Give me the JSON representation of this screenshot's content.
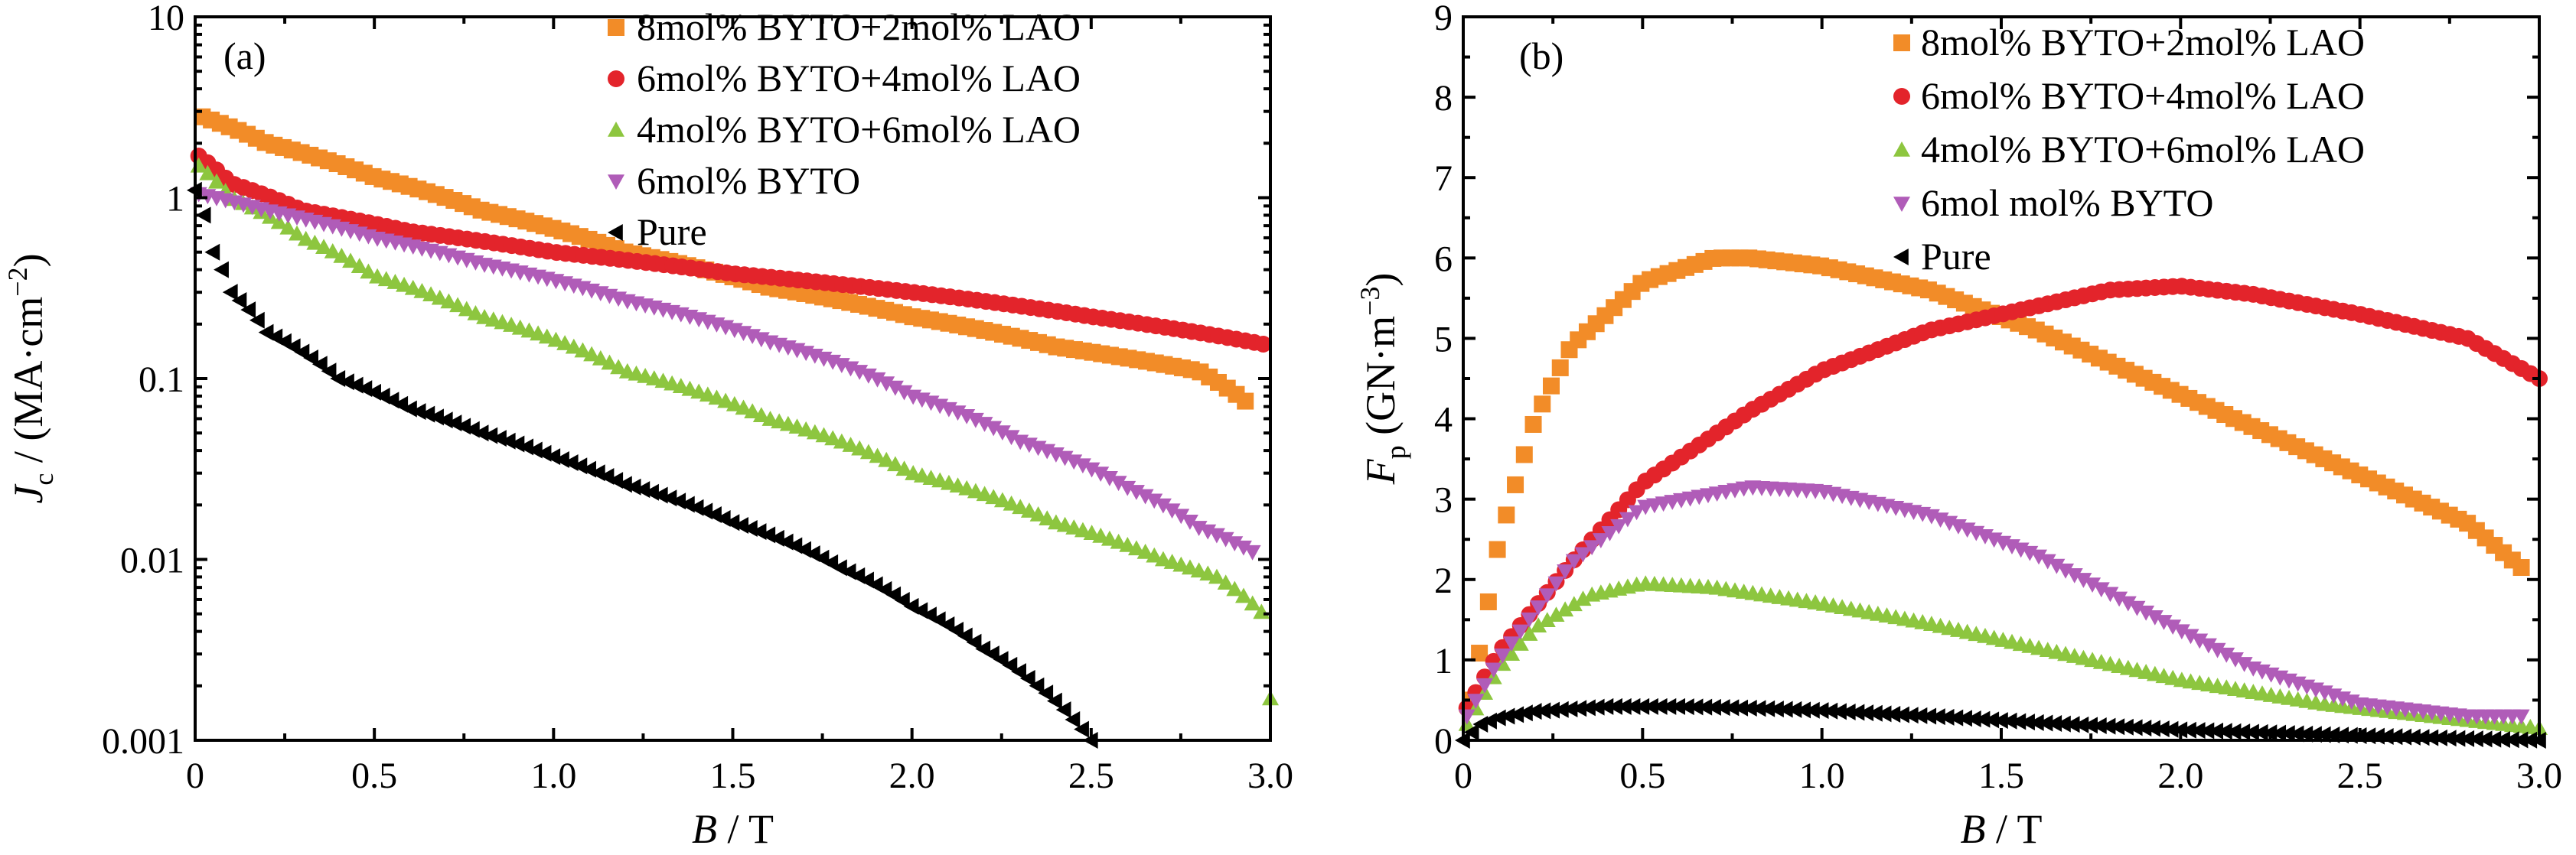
{
  "chart_data": [
    {
      "type": "scatter",
      "panel_label": "(a)",
      "ylabel": {
        "symbol": "J",
        "sub": "c",
        "rest": " / (MA·cm",
        "sup": "−2",
        "close": ")"
      },
      "xlabel": {
        "symbol": "B",
        "rest": " / T"
      },
      "xlim": [
        0,
        3
      ],
      "ylim": [
        0.001,
        10
      ],
      "y_scale": "log",
      "x_ticks": [
        0,
        0.5,
        1.0,
        1.5,
        2.0,
        2.5,
        3.0
      ],
      "x_tick_labels": [
        "0",
        "0.5",
        "1.0",
        "1.5",
        "2.0",
        "2.5",
        "3.0"
      ],
      "y_ticks": [
        0.001,
        0.01,
        0.1,
        1,
        10
      ],
      "y_tick_labels": [
        "0.001",
        "0.01",
        "0.1",
        "1",
        "10"
      ],
      "legend_position": "top-right",
      "series": [
        {
          "name": "8mol% BYTO+2mol% LAO",
          "color": "#f28c28",
          "marker": "square",
          "x": [
            0.02,
            0.2,
            0.5,
            0.8,
            1.2,
            1.6,
            2.0,
            2.4,
            2.8,
            2.93
          ],
          "y": [
            2.8,
            2.0,
            1.3,
            0.85,
            0.5,
            0.32,
            0.22,
            0.15,
            0.11,
            0.075
          ]
        },
        {
          "name": "6mol% BYTO+4mol% LAO",
          "color": "#e3242b",
          "marker": "circle",
          "x": [
            0.01,
            0.1,
            0.3,
            0.6,
            1.0,
            1.5,
            2.0,
            2.5,
            2.98
          ],
          "y": [
            1.7,
            1.2,
            0.85,
            0.65,
            0.5,
            0.38,
            0.3,
            0.22,
            0.155
          ]
        },
        {
          "name": "4mol% BYTO+6mol% LAO",
          "color": "#8dc63f",
          "marker": "triangle-up",
          "x": [
            0.01,
            0.1,
            0.3,
            0.5,
            0.8,
            1.2,
            1.6,
            2.0,
            2.4,
            2.7,
            2.85,
            2.98,
            3.0
          ],
          "y": [
            1.5,
            1.0,
            0.6,
            0.37,
            0.22,
            0.11,
            0.06,
            0.03,
            0.016,
            0.01,
            0.008,
            0.005,
            0.0017
          ]
        },
        {
          "name": "6mol% BYTO",
          "color": "#b05cb8",
          "marker": "triangle-down",
          "x": [
            0.01,
            0.2,
            0.5,
            0.8,
            1.2,
            1.6,
            2.0,
            2.3,
            2.6,
            2.8,
            2.95
          ],
          "y": [
            1.05,
            0.85,
            0.6,
            0.43,
            0.27,
            0.16,
            0.08,
            0.045,
            0.025,
            0.015,
            0.011
          ]
        },
        {
          "name": "Pure",
          "color": "#000000",
          "marker": "triangle-left",
          "x": [
            0.0,
            0.05,
            0.1,
            0.2,
            0.4,
            0.6,
            0.8,
            1.0,
            1.2,
            1.5,
            1.8,
            2.0,
            2.2,
            2.35,
            2.45,
            2.5
          ],
          "y": [
            1.1,
            0.5,
            0.3,
            0.18,
            0.1,
            0.068,
            0.05,
            0.037,
            0.026,
            0.016,
            0.009,
            0.0055,
            0.0032,
            0.002,
            0.0013,
            0.001
          ]
        }
      ]
    },
    {
      "type": "scatter",
      "panel_label": "(b)",
      "ylabel": {
        "symbol": "F",
        "sub": "p",
        "rest": " (GN·m",
        "sup": "−3",
        "close": ")"
      },
      "xlabel": {
        "symbol": "B",
        "rest": " / T"
      },
      "xlim": [
        0,
        3
      ],
      "ylim": [
        0,
        9
      ],
      "y_scale": "linear",
      "x_ticks": [
        0,
        0.5,
        1.0,
        1.5,
        2.0,
        2.5,
        3.0
      ],
      "x_tick_labels": [
        "0",
        "0.5",
        "1.0",
        "1.5",
        "2.0",
        "2.5",
        "3.0"
      ],
      "y_ticks": [
        0,
        1,
        2,
        3,
        4,
        5,
        6,
        7,
        8,
        9
      ],
      "y_tick_labels": [
        "0",
        "1",
        "2",
        "3",
        "4",
        "5",
        "6",
        "7",
        "8",
        "9"
      ],
      "legend_position": "top-right",
      "series": [
        {
          "name": "8mol% BYTO+2mol% LAO",
          "color": "#f28c28",
          "marker": "square",
          "x": [
            0.02,
            0.05,
            0.1,
            0.2,
            0.3,
            0.5,
            0.7,
            0.8,
            1.0,
            1.3,
            1.6,
            2.0,
            2.4,
            2.8,
            2.95
          ],
          "y": [
            0.5,
            1.2,
            2.5,
            4.0,
            4.9,
            5.7,
            6.0,
            6.0,
            5.9,
            5.6,
            5.1,
            4.3,
            3.5,
            2.7,
            2.15
          ]
        },
        {
          "name": "6mol% BYTO+4mol% LAO",
          "color": "#e3242b",
          "marker": "circle",
          "x": [
            0.01,
            0.1,
            0.3,
            0.5,
            0.8,
            1.0,
            1.3,
            1.6,
            1.8,
            2.0,
            2.2,
            2.5,
            2.8,
            3.0
          ],
          "y": [
            0.4,
            1.1,
            2.2,
            3.2,
            4.1,
            4.6,
            5.1,
            5.4,
            5.6,
            5.65,
            5.55,
            5.3,
            5.0,
            4.5
          ]
        },
        {
          "name": "4mol% BYTO+6mol% LAO",
          "color": "#8dc63f",
          "marker": "triangle-up",
          "x": [
            0.01,
            0.1,
            0.2,
            0.35,
            0.5,
            0.7,
            1.0,
            1.3,
            1.6,
            2.0,
            2.4,
            2.7,
            3.0
          ],
          "y": [
            0.2,
            0.9,
            1.4,
            1.8,
            1.95,
            1.9,
            1.7,
            1.45,
            1.15,
            0.75,
            0.45,
            0.3,
            0.15
          ]
        },
        {
          "name": "6mol mol% BYTO",
          "color": "#b05cb8",
          "marker": "triangle-down",
          "x": [
            0.01,
            0.1,
            0.3,
            0.5,
            0.8,
            1.0,
            1.3,
            1.6,
            1.9,
            2.2,
            2.5,
            2.8,
            2.95
          ],
          "y": [
            0.3,
            1.0,
            2.2,
            2.9,
            3.15,
            3.1,
            2.8,
            2.3,
            1.6,
            0.9,
            0.45,
            0.3,
            0.3
          ]
        },
        {
          "name": "Pure",
          "color": "#000000",
          "marker": "triangle-left",
          "x": [
            0.0,
            0.05,
            0.1,
            0.2,
            0.4,
            0.6,
            0.8,
            1.0,
            1.3,
            1.6,
            2.0,
            2.4,
            2.8,
            3.0
          ],
          "y": [
            0.0,
            0.2,
            0.28,
            0.36,
            0.42,
            0.42,
            0.4,
            0.37,
            0.3,
            0.22,
            0.13,
            0.07,
            0.02,
            0.0
          ]
        }
      ]
    }
  ]
}
